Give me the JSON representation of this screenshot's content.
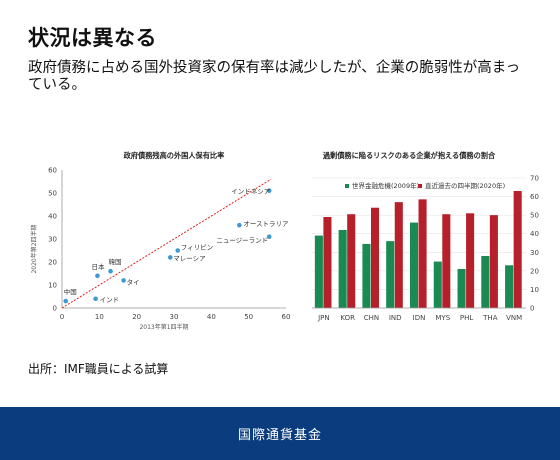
{
  "header": {
    "title": "状況は異なる",
    "subtitle": "政府債務に占める国外投資家の保有率は減少したが、企業の脆弱性が高まっている。"
  },
  "source": "出所：IMF職員による試算",
  "footer": {
    "label": "国際通貨基金"
  },
  "colors": {
    "footer_bg": "#0b3d7e",
    "scatter_point": "#3d9ad1",
    "trend": "#e0201b",
    "bar_green": "#1a8a52",
    "bar_red": "#b5202b"
  },
  "chart_data": [
    {
      "type": "scatter",
      "title": "政府債務残高の外国人保有比率",
      "xlabel": "2013年第1四半期",
      "ylabel": "2020年第2四半期",
      "xlim": [
        0,
        60
      ],
      "ylim": [
        0,
        60
      ],
      "xticks": [
        0,
        10,
        20,
        30,
        40,
        50,
        60
      ],
      "yticks": [
        0,
        10,
        20,
        30,
        40,
        50,
        60
      ],
      "trendline": {
        "from": [
          0,
          0
        ],
        "to": [
          56,
          56
        ]
      },
      "points": [
        {
          "label": "中国",
          "x": 1,
          "y": 3
        },
        {
          "label": "インド",
          "x": 9,
          "y": 4
        },
        {
          "label": "日本",
          "x": 9.5,
          "y": 14
        },
        {
          "label": "韓国",
          "x": 13,
          "y": 16
        },
        {
          "label": "タイ",
          "x": 16.5,
          "y": 12
        },
        {
          "label": "フィリピン",
          "x": 31,
          "y": 25
        },
        {
          "label": "マレーシア",
          "x": 29,
          "y": 22
        },
        {
          "label": "オーストラリア",
          "x": 47.5,
          "y": 36
        },
        {
          "label": "ニュージーランド",
          "x": 55.5,
          "y": 31
        },
        {
          "label": "インドネシア",
          "x": 55.5,
          "y": 51
        }
      ]
    },
    {
      "type": "bar",
      "title": "過剰債務に陥るリスクのある企業が抱える債務の割合",
      "categories": [
        "JPN",
        "KOR",
        "CHN",
        "IND",
        "IDN",
        "MYS",
        "PHL",
        "THA",
        "VNM"
      ],
      "ylim": [
        0,
        70
      ],
      "yticks": [
        0,
        10,
        20,
        30,
        40,
        50,
        60,
        70
      ],
      "series": [
        {
          "name": "世界金融危機(2009年)",
          "values": [
            39,
            42,
            34.5,
            36,
            46,
            25,
            21,
            28,
            23
          ]
        },
        {
          "name": "直近過去の四半期(2020年)",
          "values": [
            49,
            50.5,
            54,
            57,
            58.5,
            50.5,
            51,
            50,
            63
          ]
        }
      ]
    }
  ]
}
